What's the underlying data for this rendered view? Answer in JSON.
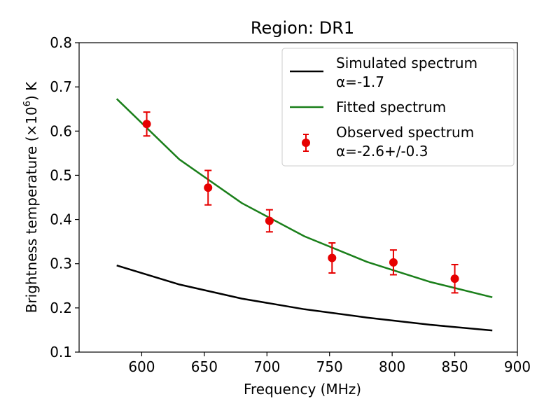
{
  "chart_data": {
    "type": "line",
    "title": "Region: DR1",
    "xlabel": "Frequency (MHz)",
    "ylabel": {
      "prefix": "Brightness temperature (×10",
      "exponent": "6",
      "suffix": ") K"
    },
    "xlim": [
      550,
      900
    ],
    "ylim": [
      0.1,
      0.8
    ],
    "xticks": [
      600,
      650,
      700,
      750,
      800,
      850,
      900
    ],
    "yticks": [
      "0.1",
      "0.2",
      "0.3",
      "0.4",
      "0.5",
      "0.6",
      "0.7",
      "0.8"
    ],
    "legend_position": "top-right",
    "series": [
      {
        "name": "simulated",
        "legend_line1": "Simulated spectrum",
        "legend_line2": "α=-1.7",
        "color": "#000000",
        "kind": "line",
        "x": [
          580,
          630,
          680,
          730,
          780,
          830,
          880
        ],
        "y": [
          0.296,
          0.253,
          0.221,
          0.197,
          0.178,
          0.162,
          0.149
        ]
      },
      {
        "name": "fitted",
        "legend_line1": "Fitted spectrum",
        "color": "#1a7f1a",
        "kind": "line",
        "x": [
          580,
          630,
          680,
          730,
          780,
          830,
          880
        ],
        "y": [
          0.673,
          0.536,
          0.437,
          0.362,
          0.304,
          0.259,
          0.224
        ]
      },
      {
        "name": "observed",
        "legend_line1": "Observed spectrum",
        "legend_line2": "α=-2.6+/-0.3",
        "color": "#e60000",
        "kind": "errorbar",
        "x": [
          604,
          653,
          702,
          752,
          801,
          850
        ],
        "y": [
          0.616,
          0.472,
          0.397,
          0.313,
          0.303,
          0.266
        ],
        "yerr": [
          0.027,
          0.039,
          0.025,
          0.034,
          0.028,
          0.032
        ]
      }
    ]
  }
}
